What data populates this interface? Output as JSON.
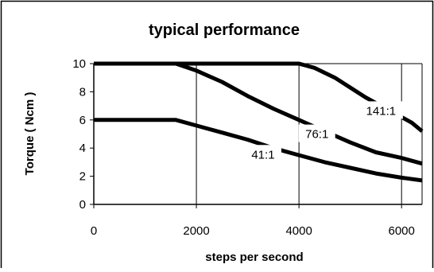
{
  "chart_data": {
    "type": "line",
    "title": "typical performance",
    "xlabel": "steps per second",
    "ylabel": "Torque ( Ncm )",
    "xlim": [
      0,
      6400
    ],
    "ylim": [
      0,
      10
    ],
    "xticks": [
      0,
      2000,
      4000,
      6000
    ],
    "yticks": [
      0,
      2,
      4,
      6,
      8,
      10
    ],
    "grid": "vertical-only",
    "legend": "none",
    "line_color": "#000000",
    "series": [
      {
        "name": "141:1",
        "x": [
          0,
          1000,
          2000,
          3000,
          3600,
          4000,
          4300,
          4700,
          5000,
          5300,
          5600,
          5900,
          6200,
          6400
        ],
        "y": [
          10,
          10,
          10,
          10,
          10,
          10,
          9.7,
          9.0,
          8.3,
          7.6,
          7.0,
          6.4,
          5.8,
          5.2
        ]
      },
      {
        "name": "76:1",
        "x": [
          0,
          1000,
          1600,
          2000,
          2500,
          3000,
          3500,
          4000,
          4500,
          5000,
          5500,
          6000,
          6400
        ],
        "y": [
          10,
          10,
          10,
          9.5,
          8.7,
          7.7,
          6.8,
          6.0,
          5.2,
          4.4,
          3.7,
          3.3,
          2.9
        ]
      },
      {
        "name": "41:1",
        "x": [
          0,
          1000,
          1600,
          2000,
          2500,
          3000,
          3500,
          4000,
          4500,
          5000,
          5500,
          6000,
          6400
        ],
        "y": [
          6,
          6,
          6,
          5.6,
          5.1,
          4.6,
          4.0,
          3.5,
          3.0,
          2.6,
          2.2,
          1.9,
          1.7
        ]
      }
    ]
  }
}
